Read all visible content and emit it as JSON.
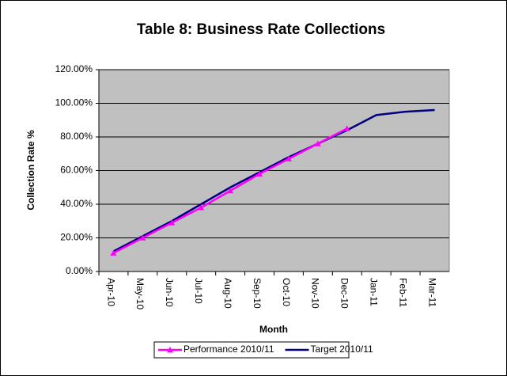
{
  "chart_data": {
    "type": "line",
    "title": "Table 8: Business Rate Collections",
    "x_label": "Month",
    "y_label": "Collection Rate %",
    "categories": [
      "Apr-10",
      "May-10",
      "Jun-10",
      "Jul-10",
      "Aug-10",
      "Sep-10",
      "Oct-10",
      "Nov-10",
      "Dec-10",
      "Jan-11",
      "Feb-11",
      "Mar-11"
    ],
    "series": [
      {
        "name": "Performance 2010/11",
        "color": "#ff00ff",
        "marker": "triangle",
        "values": [
          11,
          20,
          29,
          38,
          48,
          58,
          67,
          76,
          85,
          null,
          null,
          null
        ]
      },
      {
        "name": "Target 2010/11",
        "color": "#000080",
        "values": [
          12,
          21,
          30,
          40,
          50,
          59,
          68,
          76,
          84,
          93,
          95,
          96
        ]
      }
    ],
    "ylim": [
      0,
      120
    ],
    "yticks": [
      {
        "value": 0,
        "label": "0.00%"
      },
      {
        "value": 20,
        "label": "20.00%"
      },
      {
        "value": 40,
        "label": "40.00%"
      },
      {
        "value": 60,
        "label": "60.00%"
      },
      {
        "value": 80,
        "label": "80.00%"
      },
      {
        "value": 100,
        "label": "100.00%"
      },
      {
        "value": 120,
        "label": "120.00%"
      }
    ],
    "grid": true,
    "legend": "bottom"
  }
}
